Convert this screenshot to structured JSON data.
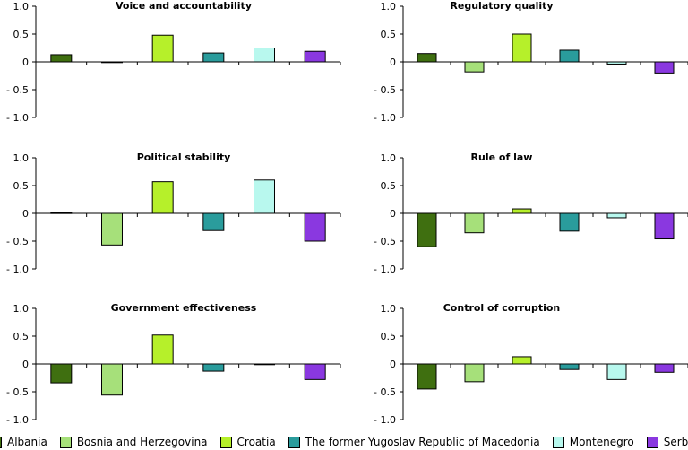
{
  "countries": [
    "Albania",
    "Bosnia and Herzegovina",
    "Croatia",
    "The former Yugoslav Republic of Macedonia",
    "Montenegro",
    "Serbia"
  ],
  "colors": [
    "#3f6f10",
    "#a6e07a",
    "#b6f02a",
    "#2a9c9c",
    "#b8f8ee",
    "#8a38e0"
  ],
  "chart_data": [
    {
      "type": "bar",
      "title": "Voice and accountability",
      "categories": [
        "Albania",
        "Bosnia and Herzegovina",
        "Croatia",
        "The former Yugoslav Republic of Macedonia",
        "Montenegro",
        "Serbia"
      ],
      "values": [
        0.13,
        0.0,
        0.48,
        0.16,
        0.25,
        0.19
      ],
      "ylim": [
        -1.0,
        1.0
      ],
      "yticks": [
        "1.0",
        "0.5",
        "0",
        "- 0.5",
        "- 1.0"
      ]
    },
    {
      "type": "bar",
      "title": "Regulatory quality",
      "categories": [
        "Albania",
        "Bosnia and Herzegovina",
        "Croatia",
        "The former Yugoslav Republic of Macedonia",
        "Montenegro",
        "Serbia"
      ],
      "values": [
        0.15,
        -0.18,
        0.5,
        0.21,
        -0.04,
        -0.2
      ],
      "ylim": [
        -1.0,
        1.0
      ],
      "yticks": [
        "1.0",
        "0.5",
        "0",
        "- 0.5",
        "- 1.0"
      ]
    },
    {
      "type": "bar",
      "title": "Political stability",
      "categories": [
        "Albania",
        "Bosnia and Herzegovina",
        "Croatia",
        "The former Yugoslav Republic of Macedonia",
        "Montenegro",
        "Serbia"
      ],
      "values": [
        0.01,
        -0.57,
        0.57,
        -0.31,
        0.6,
        -0.5
      ],
      "ylim": [
        -1.0,
        1.0
      ],
      "yticks": [
        "1.0",
        "0.5",
        "0",
        "- 0.5",
        "- 1.0"
      ]
    },
    {
      "type": "bar",
      "title": "Rule of law",
      "categories": [
        "Albania",
        "Bosnia and Herzegovina",
        "Croatia",
        "The former Yugoslav Republic of Macedonia",
        "Montenegro",
        "Serbia"
      ],
      "values": [
        -0.6,
        -0.35,
        0.08,
        -0.32,
        -0.08,
        -0.46
      ],
      "ylim": [
        -1.0,
        1.0
      ],
      "yticks": [
        "1.0",
        "0.5",
        "0",
        "- 0.5",
        "- 1.0"
      ]
    },
    {
      "type": "bar",
      "title": "Government effectiveness",
      "categories": [
        "Albania",
        "Bosnia and Herzegovina",
        "Croatia",
        "The former Yugoslav Republic of Macedonia",
        "Montenegro",
        "Serbia"
      ],
      "values": [
        -0.34,
        -0.56,
        0.52,
        -0.13,
        -0.01,
        -0.28
      ],
      "ylim": [
        -1.0,
        1.0
      ],
      "yticks": [
        "1.0",
        "0.5",
        "0",
        "- 0.5",
        "- 1.0"
      ]
    },
    {
      "type": "bar",
      "title": "Control of corruption",
      "categories": [
        "Albania",
        "Bosnia and Herzegovina",
        "Croatia",
        "The former Yugoslav Republic of Macedonia",
        "Montenegro",
        "Serbia"
      ],
      "values": [
        -0.45,
        -0.32,
        0.13,
        -0.1,
        -0.28,
        -0.15
      ],
      "ylim": [
        -1.0,
        1.0
      ],
      "yticks": [
        "1.0",
        "0.5",
        "0",
        "- 0.5",
        "- 1.0"
      ]
    }
  ]
}
